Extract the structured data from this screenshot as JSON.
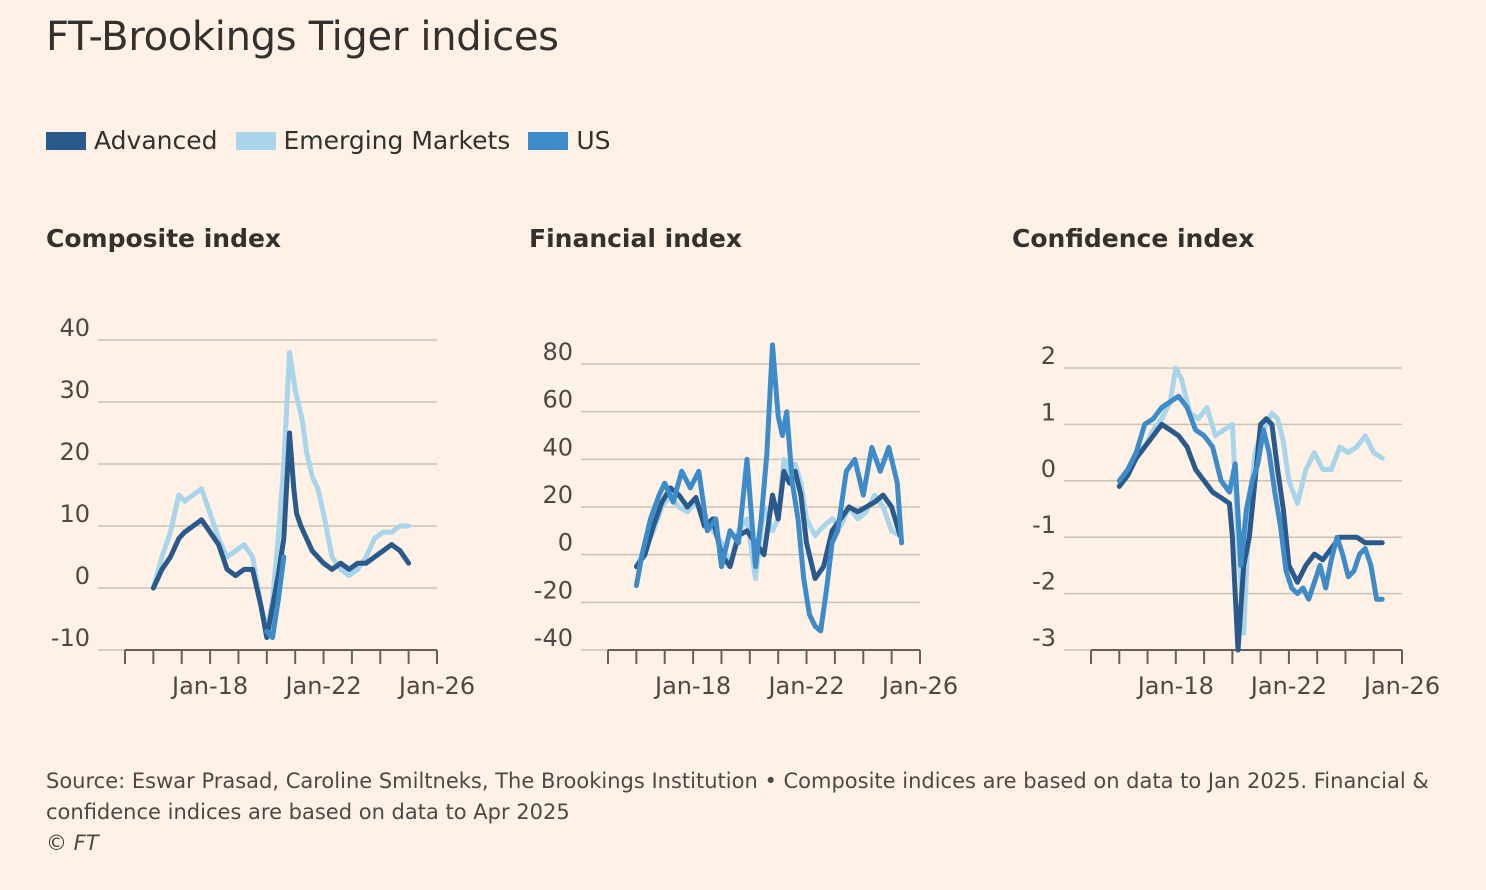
{
  "title": "FT-Brookings Tiger indices",
  "legend": [
    {
      "label": "Advanced",
      "color": "#2A5A8C"
    },
    {
      "label": "Emerging Markets",
      "color": "#A8D5EA"
    },
    {
      "label": "US",
      "color": "#3D8CC9"
    }
  ],
  "footer": {
    "source": "Source: Eswar Prasad, Caroline Smiltneks, The Brookings Institution • Composite indices are based on data to Jan 2025. Financial & confidence indices are based on data to Apr 2025",
    "copyright": "© FT"
  },
  "chart_data": [
    {
      "type": "line",
      "title": "Composite index",
      "xlim": [
        2015.0,
        2026.0
      ],
      "ylim": [
        -10,
        40
      ],
      "yticks": [
        -10,
        0,
        10,
        20,
        30,
        40
      ],
      "xticks": [
        {
          "label": "Jan-18",
          "value": 2018
        },
        {
          "label": "Jan-22",
          "value": 2022
        },
        {
          "label": "Jan-26",
          "value": 2026
        }
      ],
      "grid": true,
      "series": [
        {
          "name": "Emerging Markets",
          "color": "#A8D5EA",
          "x": [
            2016.0,
            2016.3,
            2016.6,
            2016.9,
            2017.1,
            2017.4,
            2017.7,
            2018.0,
            2018.3,
            2018.6,
            2018.9,
            2019.2,
            2019.5,
            2019.8,
            2020.0,
            2020.2,
            2020.4,
            2020.6,
            2020.8,
            2021.0,
            2021.1,
            2021.25,
            2021.4,
            2021.6,
            2021.8,
            2022.0,
            2022.3,
            2022.6,
            2022.9,
            2023.2,
            2023.5,
            2023.8,
            2024.1,
            2024.4,
            2024.7,
            2025.0
          ],
          "y": [
            0,
            5,
            9,
            15,
            14,
            15,
            16,
            12,
            8,
            5,
            6,
            7,
            5,
            -3,
            -7,
            -2,
            8,
            20,
            38,
            32,
            30,
            27,
            22,
            18,
            16,
            12,
            5,
            3,
            2,
            3,
            5,
            8,
            9,
            9,
            10,
            10
          ]
        },
        {
          "name": "Advanced",
          "color": "#2A5A8C",
          "x": [
            2016.0,
            2016.3,
            2016.6,
            2016.9,
            2017.1,
            2017.4,
            2017.7,
            2018.0,
            2018.3,
            2018.6,
            2018.9,
            2019.2,
            2019.5,
            2019.8,
            2020.0,
            2020.2,
            2020.4,
            2020.6,
            2020.8,
            2020.95,
            2021.05,
            2021.2,
            2021.4,
            2021.6,
            2021.8,
            2022.0,
            2022.3,
            2022.6,
            2022.9,
            2023.2,
            2023.5,
            2023.8,
            2024.1,
            2024.4,
            2024.7,
            2025.0
          ],
          "y": [
            0,
            3,
            5,
            8,
            9,
            10,
            11,
            9,
            7,
            3,
            2,
            3,
            3,
            -3,
            -8,
            -3,
            2,
            8,
            25,
            16,
            12,
            10,
            8,
            6,
            5,
            4,
            3,
            4,
            3,
            4,
            4,
            5,
            6,
            7,
            6,
            4
          ]
        },
        {
          "name": "US",
          "color": "#3D8CC9",
          "x": [
            2020.0,
            2020.2,
            2020.4,
            2020.6
          ],
          "y": [
            -7,
            -8,
            -2,
            5
          ]
        }
      ]
    },
    {
      "type": "line",
      "title": "Financial index",
      "xlim": [
        2015.0,
        2026.0
      ],
      "ylim": [
        -40,
        80
      ],
      "yticks": [
        -40,
        -20,
        0,
        20,
        40,
        60,
        80
      ],
      "xticks": [
        {
          "label": "Jan-18",
          "value": 2018
        },
        {
          "label": "Jan-22",
          "value": 2022
        },
        {
          "label": "Jan-26",
          "value": 2026
        }
      ],
      "grid": true,
      "series": [
        {
          "name": "Emerging Markets",
          "color": "#A8D5EA",
          "x": [
            2016.0,
            2016.3,
            2016.6,
            2016.9,
            2017.2,
            2017.5,
            2017.8,
            2018.1,
            2018.4,
            2018.7,
            2019.0,
            2019.3,
            2019.6,
            2019.9,
            2020.2,
            2020.5,
            2020.8,
            2021.0,
            2021.2,
            2021.4,
            2021.6,
            2021.8,
            2022.0,
            2022.3,
            2022.6,
            2022.9,
            2023.2,
            2023.5,
            2023.8,
            2024.1,
            2024.4,
            2024.7,
            2025.0,
            2025.3
          ],
          "y": [
            -5,
            2,
            10,
            20,
            25,
            20,
            18,
            22,
            15,
            10,
            5,
            -5,
            10,
            15,
            -10,
            20,
            10,
            15,
            40,
            35,
            38,
            30,
            15,
            8,
            12,
            15,
            12,
            20,
            15,
            18,
            25,
            20,
            10,
            8
          ]
        },
        {
          "name": "Advanced",
          "color": "#2A5A8C",
          "x": [
            2016.0,
            2016.3,
            2016.6,
            2016.9,
            2017.2,
            2017.5,
            2017.8,
            2018.1,
            2018.4,
            2018.7,
            2019.0,
            2019.3,
            2019.6,
            2019.9,
            2020.2,
            2020.5,
            2020.8,
            2021.0,
            2021.2,
            2021.4,
            2021.6,
            2021.8,
            2022.0,
            2022.3,
            2022.6,
            2022.9,
            2023.2,
            2023.5,
            2023.8,
            2024.1,
            2024.4,
            2024.7,
            2025.0,
            2025.3
          ],
          "y": [
            -5,
            0,
            12,
            22,
            28,
            25,
            20,
            24,
            12,
            15,
            0,
            -5,
            8,
            10,
            5,
            0,
            25,
            15,
            35,
            30,
            35,
            25,
            5,
            -10,
            -5,
            10,
            15,
            20,
            18,
            20,
            22,
            25,
            20,
            8
          ]
        },
        {
          "name": "US",
          "color": "#3D8CC9",
          "x": [
            2016.0,
            2016.2,
            2016.5,
            2016.8,
            2017.0,
            2017.3,
            2017.6,
            2017.9,
            2018.2,
            2018.5,
            2018.8,
            2019.0,
            2019.3,
            2019.6,
            2019.9,
            2020.2,
            2020.4,
            2020.6,
            2020.8,
            2021.0,
            2021.15,
            2021.3,
            2021.5,
            2021.7,
            2021.9,
            2022.1,
            2022.3,
            2022.5,
            2022.7,
            2022.9,
            2023.1,
            2023.4,
            2023.7,
            2024.0,
            2024.3,
            2024.6,
            2024.9,
            2025.2,
            2025.35
          ],
          "y": [
            -13,
            0,
            15,
            25,
            30,
            22,
            35,
            28,
            35,
            10,
            15,
            -5,
            10,
            5,
            40,
            -5,
            15,
            42,
            88,
            58,
            50,
            60,
            30,
            15,
            -10,
            -25,
            -30,
            -32,
            -15,
            5,
            10,
            35,
            40,
            25,
            45,
            35,
            45,
            30,
            5
          ]
        }
      ]
    },
    {
      "type": "line",
      "title": "Confidence index",
      "xlim": [
        2015.0,
        2026.0
      ],
      "ylim": [
        -3,
        2
      ],
      "yticks": [
        -3,
        -2,
        -1,
        0,
        1,
        2
      ],
      "xticks": [
        {
          "label": "Jan-18",
          "value": 2018
        },
        {
          "label": "Jan-22",
          "value": 2022
        },
        {
          "label": "Jan-26",
          "value": 2026
        }
      ],
      "grid": true,
      "series": [
        {
          "name": "Emerging Markets",
          "color": "#A8D5EA",
          "x": [
            2016.0,
            2016.3,
            2016.6,
            2016.9,
            2017.2,
            2017.5,
            2017.8,
            2018.0,
            2018.2,
            2018.5,
            2018.8,
            2019.1,
            2019.4,
            2019.7,
            2020.0,
            2020.2,
            2020.4,
            2020.6,
            2020.8,
            2021.0,
            2021.2,
            2021.4,
            2021.6,
            2021.8,
            2022.0,
            2022.3,
            2022.6,
            2022.9,
            2023.2,
            2023.5,
            2023.8,
            2024.1,
            2024.4,
            2024.7,
            2025.0,
            2025.3
          ],
          "y": [
            -0.1,
            0.2,
            0.5,
            0.6,
            0.9,
            1.1,
            1.4,
            2.0,
            1.8,
            1.2,
            1.1,
            1.3,
            0.8,
            0.9,
            1.0,
            -1.0,
            -2.7,
            -0.5,
            0.5,
            0.8,
            1.0,
            1.2,
            1.1,
            0.7,
            0.0,
            -0.4,
            0.2,
            0.5,
            0.2,
            0.2,
            0.6,
            0.5,
            0.6,
            0.8,
            0.5,
            0.4
          ]
        },
        {
          "name": "Advanced",
          "color": "#2A5A8C",
          "x": [
            2016.0,
            2016.3,
            2016.6,
            2016.9,
            2017.2,
            2017.5,
            2017.8,
            2018.1,
            2018.4,
            2018.7,
            2019.0,
            2019.3,
            2019.6,
            2019.9,
            2020.0,
            2020.2,
            2020.4,
            2020.6,
            2020.8,
            2021.0,
            2021.2,
            2021.4,
            2021.6,
            2021.8,
            2022.0,
            2022.3,
            2022.6,
            2022.9,
            2023.2,
            2023.5,
            2023.8,
            2024.1,
            2024.4,
            2024.7,
            2025.0,
            2025.3
          ],
          "y": [
            -0.1,
            0.1,
            0.4,
            0.6,
            0.8,
            1.0,
            0.9,
            0.8,
            0.6,
            0.2,
            0.0,
            -0.2,
            -0.3,
            -0.4,
            -1.0,
            -3.0,
            -1.5,
            -1.0,
            0.0,
            1.0,
            1.1,
            1.0,
            0.2,
            -0.5,
            -1.5,
            -1.8,
            -1.5,
            -1.3,
            -1.4,
            -1.2,
            -1.0,
            -1.0,
            -1.0,
            -1.1,
            -1.1,
            -1.1
          ]
        },
        {
          "name": "US",
          "color": "#3D8CC9",
          "x": [
            2016.0,
            2016.3,
            2016.6,
            2016.9,
            2017.2,
            2017.5,
            2017.8,
            2018.1,
            2018.4,
            2018.7,
            2019.0,
            2019.3,
            2019.6,
            2019.9,
            2020.1,
            2020.3,
            2020.5,
            2020.7,
            2020.9,
            2021.1,
            2021.3,
            2021.5,
            2021.7,
            2021.9,
            2022.1,
            2022.3,
            2022.5,
            2022.7,
            2022.9,
            2023.1,
            2023.3,
            2023.5,
            2023.7,
            2023.9,
            2024.1,
            2024.3,
            2024.5,
            2024.7,
            2024.9,
            2025.1,
            2025.3
          ],
          "y": [
            0.0,
            0.2,
            0.5,
            1.0,
            1.1,
            1.3,
            1.4,
            1.5,
            1.3,
            0.9,
            0.8,
            0.6,
            0.0,
            -0.2,
            0.3,
            -1.5,
            -0.5,
            0.0,
            0.3,
            0.9,
            0.5,
            -0.2,
            -0.8,
            -1.6,
            -1.9,
            -2.0,
            -1.9,
            -2.1,
            -1.8,
            -1.5,
            -1.9,
            -1.4,
            -1.0,
            -1.3,
            -1.7,
            -1.6,
            -1.3,
            -1.2,
            -1.5,
            -2.1,
            -2.1
          ]
        }
      ]
    }
  ]
}
